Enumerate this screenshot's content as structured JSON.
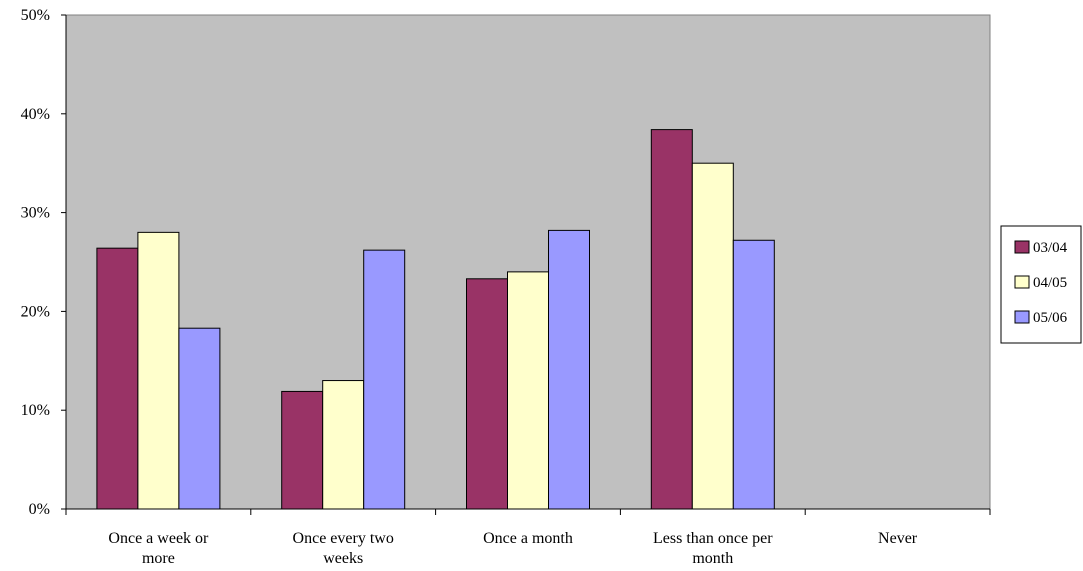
{
  "chart_data": {
    "type": "bar",
    "title": "",
    "xlabel": "",
    "ylabel": "",
    "categories": [
      [
        "Once a week or",
        "more"
      ],
      [
        "Once every two",
        "weeks"
      ],
      [
        "Once a month"
      ],
      [
        "Less than once per",
        "month"
      ],
      [
        "Never"
      ]
    ],
    "series": [
      {
        "name": "03/04",
        "color": "#993366",
        "values": [
          26.4,
          11.9,
          23.3,
          38.4,
          0
        ]
      },
      {
        "name": "04/05",
        "color": "#FFFFCC",
        "values": [
          28.0,
          13.0,
          24.0,
          35.0,
          0
        ]
      },
      {
        "name": "05/06",
        "color": "#9999FF",
        "values": [
          18.3,
          26.2,
          28.2,
          27.2,
          0
        ]
      }
    ],
    "ylim": [
      0,
      50
    ],
    "yticks": [
      0,
      10,
      20,
      30,
      40,
      50
    ],
    "ytick_format": "percent",
    "plot_background": "#C0C0C0",
    "grid": false,
    "legend_position": "right"
  }
}
